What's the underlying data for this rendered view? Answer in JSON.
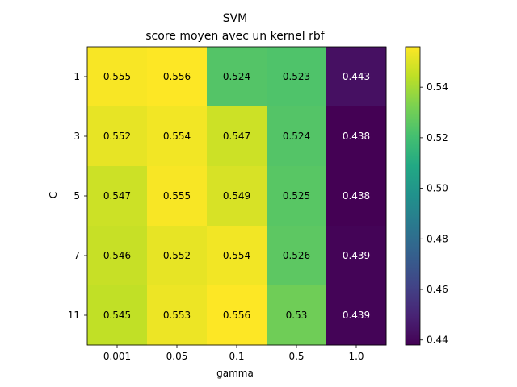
{
  "chart_data": {
    "type": "heatmap",
    "title": "SVM",
    "subtitle": "score moyen avec un kernel rbf",
    "xlabel": "gamma",
    "ylabel": "C",
    "x_categories": [
      "0.001",
      "0.05",
      "0.1",
      "0.5",
      "1.0"
    ],
    "y_categories": [
      "1",
      "3",
      "5",
      "7",
      "11"
    ],
    "values": [
      [
        0.555,
        0.556,
        0.524,
        0.523,
        0.443
      ],
      [
        0.552,
        0.554,
        0.547,
        0.524,
        0.438
      ],
      [
        0.547,
        0.555,
        0.549,
        0.525,
        0.438
      ],
      [
        0.546,
        0.552,
        0.554,
        0.526,
        0.439
      ],
      [
        0.545,
        0.553,
        0.556,
        0.53,
        0.439
      ]
    ],
    "cell_labels": [
      [
        "0.555",
        "0.556",
        "0.524",
        "0.523",
        "0.443"
      ],
      [
        "0.552",
        "0.554",
        "0.547",
        "0.524",
        "0.438"
      ],
      [
        "0.547",
        "0.555",
        "0.549",
        "0.525",
        "0.438"
      ],
      [
        "0.546",
        "0.552",
        "0.554",
        "0.526",
        "0.439"
      ],
      [
        "0.545",
        "0.553",
        "0.556",
        "0.53",
        "0.439"
      ]
    ],
    "colormap": "viridis",
    "color_range": [
      0.438,
      0.556
    ],
    "colorbar_ticks": [
      0.44,
      0.46,
      0.48,
      0.5,
      0.52,
      0.54
    ],
    "colorbar_tick_labels": [
      "0.44",
      "0.46",
      "0.48",
      "0.50",
      "0.52",
      "0.54"
    ],
    "grid": false,
    "dark_text_color": "#000000",
    "light_text_color": "#ffffff"
  }
}
